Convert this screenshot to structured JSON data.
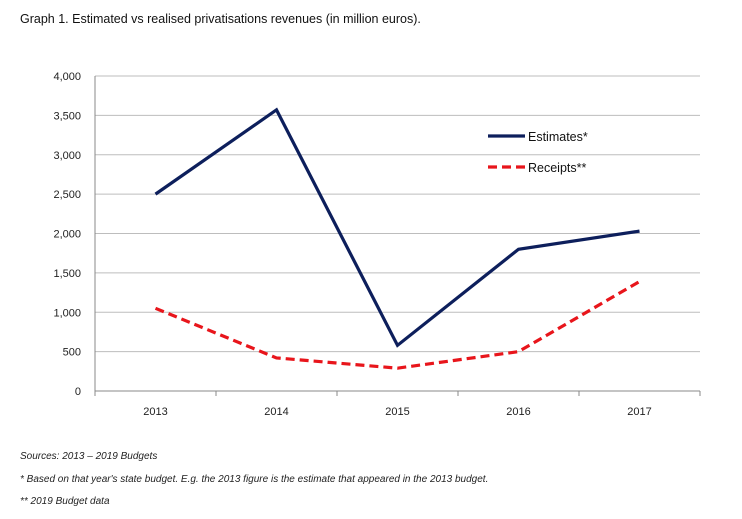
{
  "chart_data": {
    "type": "line",
    "title": "Graph 1. Estimated vs realised privatisations revenues (in million euros).",
    "xlabel": "",
    "ylabel": "",
    "categories": [
      "2013",
      "2014",
      "2015",
      "2016",
      "2017"
    ],
    "ylim": [
      0,
      4000
    ],
    "yticks": [
      "0",
      "500",
      "1,000",
      "1,500",
      "2,000",
      "2,500",
      "3,000",
      "3,500",
      "4,000"
    ],
    "grid": true,
    "legend_position": "top-right",
    "series": [
      {
        "name": "Estimates*",
        "color": "#0d1f5c",
        "style": "solid",
        "values": [
          2500,
          3570,
          580,
          1800,
          2030
        ]
      },
      {
        "name": "Receipts**",
        "color": "#e8151b",
        "style": "dashed",
        "values": [
          1050,
          420,
          290,
          500,
          1390
        ]
      }
    ]
  },
  "notes": {
    "sources": "Sources: 2013 – 2019 Budgets",
    "note1": "* Based on that year's state budget. E.g. the 2013 figure is the estimate that appeared in the 2013 budget.",
    "note2": "** 2019 Budget data"
  }
}
